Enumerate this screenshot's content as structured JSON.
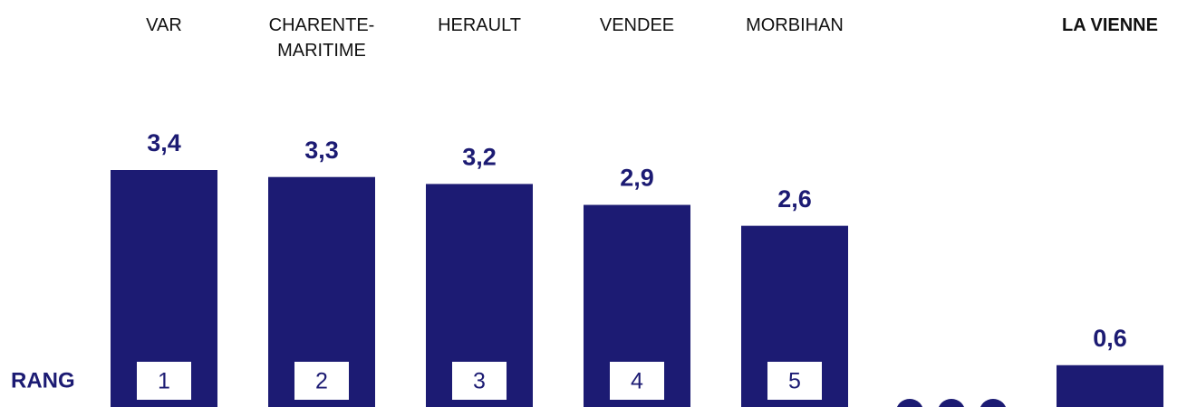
{
  "chart_data": {
    "type": "bar",
    "categories": [
      "VAR",
      "CHARENTE-\nMARITIME",
      "HERAULT",
      "VENDEE",
      "MORBIHAN",
      null,
      "LA VIENNE"
    ],
    "values": [
      3.4,
      3.3,
      3.2,
      2.9,
      2.6,
      null,
      0.6
    ],
    "value_labels": [
      "3,4",
      "3,3",
      "3,2",
      "2,9",
      "2,6",
      null,
      "0,6"
    ],
    "ranks": [
      1,
      2,
      3,
      4,
      5,
      null,
      null
    ],
    "rank_title": "RANG",
    "color": "#1c1b73"
  }
}
